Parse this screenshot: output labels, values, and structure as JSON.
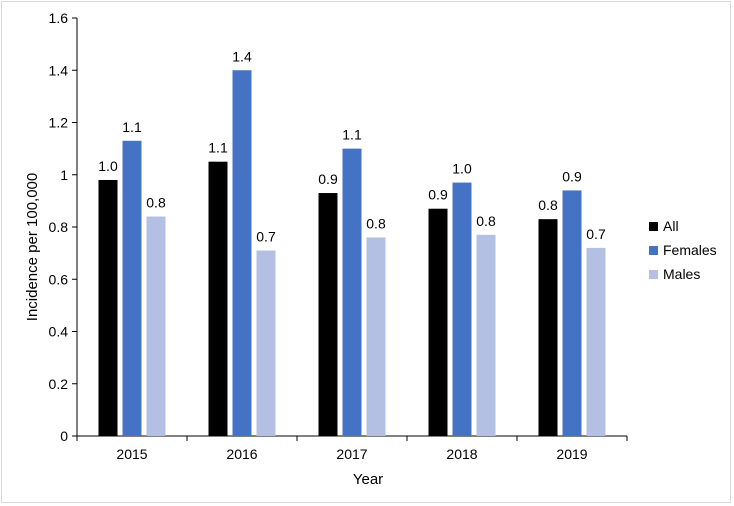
{
  "chart_data": {
    "type": "bar",
    "categories": [
      "2015",
      "2016",
      "2017",
      "2018",
      "2019"
    ],
    "series": [
      {
        "name": "All",
        "values": [
          0.98,
          1.05,
          0.93,
          0.87,
          0.83
        ],
        "labels": [
          "1.0",
          "1.1",
          "0.9",
          "0.9",
          "0.8"
        ],
        "color": "#000000"
      },
      {
        "name": "Females",
        "values": [
          1.13,
          1.4,
          1.1,
          0.97,
          0.94
        ],
        "labels": [
          "1.1",
          "1.4",
          "1.1",
          "1.0",
          "0.9"
        ],
        "color": "#4472c4"
      },
      {
        "name": "Males",
        "values": [
          0.84,
          0.71,
          0.76,
          0.77,
          0.72
        ],
        "labels": [
          "0.8",
          "0.7",
          "0.8",
          "0.8",
          "0.7"
        ],
        "color": "#b4bfe4"
      }
    ],
    "xlabel": "Year",
    "ylabel": "Incidence per 100,000",
    "ylim": [
      0,
      1.6
    ],
    "yticks": [
      "0",
      "0.2",
      "0.4",
      "0.6",
      "0.8",
      "1",
      "1.2",
      "1.4",
      "1.6"
    ],
    "grid": false,
    "legend_position": "right"
  }
}
